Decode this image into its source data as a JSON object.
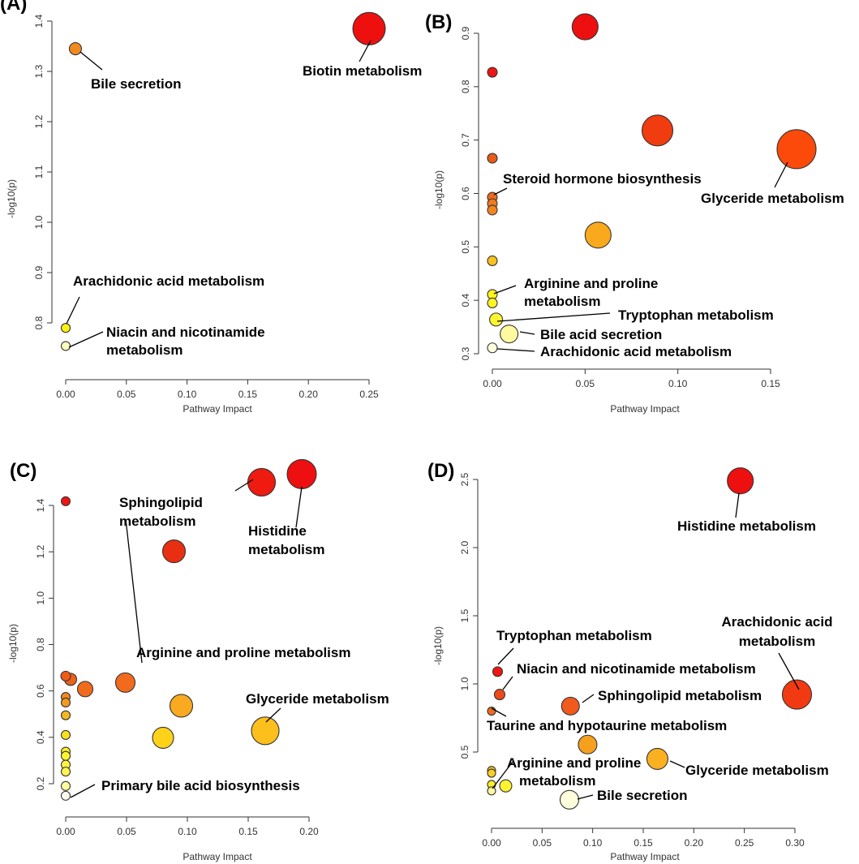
{
  "figure": {
    "description_labels": [
      "(A)",
      "(B)",
      "(C)",
      "(D)"
    ]
  },
  "chart_data": [
    {
      "panel": "(A)",
      "type": "scatter",
      "xlabel": "Pathway Impact",
      "ylabel": "-log10(p)",
      "xticks": [
        0.0,
        0.05,
        0.1,
        0.15,
        0.2,
        0.25
      ],
      "xtick_labels": [
        "0.00",
        "0.05",
        "0.10",
        "0.15",
        "0.20",
        "0.25"
      ],
      "yticks": [
        0.8,
        0.9,
        1.0,
        1.1,
        1.2,
        1.3,
        1.4
      ],
      "ytick_labels": [
        "0.8",
        "0.9",
        "1.0",
        "1.1",
        "1.2",
        "1.3",
        "1.4"
      ],
      "points": [
        {
          "x": 0.25,
          "y": 1.385,
          "r": 20,
          "color": "#ee0f0f"
        },
        {
          "x": 0.008,
          "y": 1.345,
          "r": 7.5,
          "color": "#f08a1e"
        },
        {
          "x": 0.0,
          "y": 0.79,
          "r": 5.5,
          "color": "#fff212"
        },
        {
          "x": 0.0,
          "y": 0.754,
          "r": 5.5,
          "color": "#ffffbf"
        }
      ],
      "annotations": [
        {
          "text": "Biotin metabolism",
          "x": 0.25,
          "y": 1.385
        },
        {
          "text": "Bile secretion",
          "x": 0.008,
          "y": 1.345
        },
        {
          "text": "Arachidonic acid metabolism",
          "x": 0.0,
          "y": 0.79
        },
        {
          "text": "Niacin and nicotinamide",
          "x": 0.0,
          "y": 0.754
        },
        {
          "text": "metabolism",
          "x": 0.0,
          "y": 0.754
        }
      ]
    },
    {
      "panel": "(B)",
      "type": "scatter",
      "xlabel": "Pathway Impact",
      "ylabel": "-log10(p)",
      "xticks": [
        0.0,
        0.05,
        0.1,
        0.15
      ],
      "xtick_labels": [
        "0.00",
        "0.05",
        "0.10",
        "0.15"
      ],
      "yticks": [
        0.3,
        0.4,
        0.5,
        0.6,
        0.7,
        0.8,
        0.9
      ],
      "ytick_labels": [
        "0.3",
        "0.4",
        "0.5",
        "0.6",
        "0.7",
        "0.8",
        "0.9"
      ],
      "points": [
        {
          "x": 0.05,
          "y": 0.912,
          "r": 16,
          "color": "#ee1010"
        },
        {
          "x": 0.0,
          "y": 0.827,
          "r": 6,
          "color": "#ee1515"
        },
        {
          "x": 0.089,
          "y": 0.718,
          "r": 19,
          "color": "#f13c10"
        },
        {
          "x": 0.164,
          "y": 0.683,
          "r": 24,
          "color": "#fc4a0a"
        },
        {
          "x": 0.0,
          "y": 0.666,
          "r": 6,
          "color": "#e85c18"
        },
        {
          "x": 0.0,
          "y": 0.593,
          "r": 6,
          "color": "#ee6a1a"
        },
        {
          "x": 0.0,
          "y": 0.581,
          "r": 6,
          "color": "#f07a1c"
        },
        {
          "x": 0.0,
          "y": 0.569,
          "r": 6,
          "color": "#f28520"
        },
        {
          "x": 0.057,
          "y": 0.522,
          "r": 16,
          "color": "#fba91c"
        },
        {
          "x": 0.0,
          "y": 0.474,
          "r": 6,
          "color": "#f8c020"
        },
        {
          "x": 0.0,
          "y": 0.411,
          "r": 6,
          "color": "#fff41a"
        },
        {
          "x": 0.0,
          "y": 0.395,
          "r": 6,
          "color": "#fff422"
        },
        {
          "x": 0.002,
          "y": 0.364,
          "r": 8,
          "color": "#fff530"
        },
        {
          "x": 0.009,
          "y": 0.337,
          "r": 11,
          "color": "#fffaa0"
        },
        {
          "x": 0.0,
          "y": 0.311,
          "r": 6,
          "color": "#ffffde"
        }
      ],
      "annotations": [
        {
          "text": "Steroid hormone biosynthesis"
        },
        {
          "text": "Glyceride metabolism"
        },
        {
          "text": "Arginine and proline"
        },
        {
          "text": "metabolism"
        },
        {
          "text": "Tryptophan metabolism"
        },
        {
          "text": "Bile acid secretion"
        },
        {
          "text": "Arachidonic acid metabolism"
        }
      ]
    },
    {
      "panel": "(C)",
      "type": "scatter",
      "xlabel": "Pathway Impact",
      "ylabel": "-log10(p)",
      "xticks": [
        0.0,
        0.05,
        0.1,
        0.15,
        0.2
      ],
      "xtick_labels": [
        "0.00",
        "0.05",
        "0.10",
        "0.15",
        "0.20"
      ],
      "yticks": [
        0.2,
        0.4,
        0.6,
        0.8,
        1.0,
        1.2,
        1.4
      ],
      "ytick_labels": [
        "0.2",
        "0.4",
        "0.6",
        "0.8",
        "1.0",
        "1.2",
        "1.4"
      ],
      "points": [
        {
          "x": 0.194,
          "y": 1.535,
          "r": 18,
          "color": "#ee1010"
        },
        {
          "x": 0.161,
          "y": 1.5,
          "r": 17,
          "color": "#ef1a10"
        },
        {
          "x": 0.0,
          "y": 1.418,
          "r": 5.5,
          "color": "#ee1515"
        },
        {
          "x": 0.089,
          "y": 1.202,
          "r": 14,
          "color": "#e82f12"
        },
        {
          "x": 0.0,
          "y": 0.664,
          "r": 6,
          "color": "#ee5a18"
        },
        {
          "x": 0.004,
          "y": 0.65,
          "r": 7.5,
          "color": "#ee6018"
        },
        {
          "x": 0.016,
          "y": 0.608,
          "r": 9.5,
          "color": "#f06c1c"
        },
        {
          "x": 0.049,
          "y": 0.636,
          "r": 12,
          "color": "#f26a1e"
        },
        {
          "x": 0.0,
          "y": 0.574,
          "r": 5.5,
          "color": "#f28a20"
        },
        {
          "x": 0.0,
          "y": 0.55,
          "r": 5.5,
          "color": "#f39a22"
        },
        {
          "x": 0.095,
          "y": 0.536,
          "r": 14,
          "color": "#faaa20"
        },
        {
          "x": 0.0,
          "y": 0.495,
          "r": 5.5,
          "color": "#f6b820"
        },
        {
          "x": 0.164,
          "y": 0.428,
          "r": 17,
          "color": "#fcbf1c"
        },
        {
          "x": 0.08,
          "y": 0.398,
          "r": 13,
          "color": "#ffd21a"
        },
        {
          "x": 0.0,
          "y": 0.41,
          "r": 5.5,
          "color": "#fbe020"
        },
        {
          "x": 0.0,
          "y": 0.338,
          "r": 5.5,
          "color": "#fff020"
        },
        {
          "x": 0.0,
          "y": 0.32,
          "r": 5.5,
          "color": "#fff530"
        },
        {
          "x": 0.0,
          "y": 0.282,
          "r": 5.5,
          "color": "#fff540"
        },
        {
          "x": 0.0,
          "y": 0.252,
          "r": 5.5,
          "color": "#fff550"
        },
        {
          "x": 0.0,
          "y": 0.19,
          "r": 5.5,
          "color": "#ffffa0"
        },
        {
          "x": 0.0,
          "y": 0.148,
          "r": 5.5,
          "color": "#ffffee"
        }
      ],
      "annotations": [
        {
          "text": "Sphingolipid"
        },
        {
          "text": "metabolism"
        },
        {
          "text": "Histidine"
        },
        {
          "text": "metabolism"
        },
        {
          "text": "Arginine and proline metabolism"
        },
        {
          "text": "Glyceride metabolism"
        },
        {
          "text": "Primary bile acid biosynthesis"
        }
      ]
    },
    {
      "panel": "(D)",
      "type": "scatter",
      "xlabel": "Pathway Impact",
      "ylabel": "-log10(p)",
      "xticks": [
        0.0,
        0.05,
        0.1,
        0.15,
        0.2,
        0.25,
        0.3
      ],
      "xtick_labels": [
        "0.00",
        "0.05",
        "0.10",
        "0.15",
        "0.20",
        "0.25",
        "0.30"
      ],
      "yticks": [
        0.5,
        1.0,
        1.5,
        2.0,
        2.5
      ],
      "ytick_labels": [
        "0.5",
        "1.0",
        "1.5",
        "2.0",
        "2.5"
      ],
      "points": [
        {
          "x": 0.246,
          "y": 2.49,
          "r": 16,
          "color": "#ee1010"
        },
        {
          "x": 0.006,
          "y": 1.09,
          "r": 6,
          "color": "#ee1515"
        },
        {
          "x": 0.008,
          "y": 0.922,
          "r": 6.5,
          "color": "#ee4a18"
        },
        {
          "x": 0.302,
          "y": 0.922,
          "r": 18,
          "color": "#f23a12"
        },
        {
          "x": 0.078,
          "y": 0.837,
          "r": 11,
          "color": "#f05a1c"
        },
        {
          "x": 0.0,
          "y": 0.8,
          "r": 5,
          "color": "#f06a1c"
        },
        {
          "x": 0.095,
          "y": 0.555,
          "r": 11.5,
          "color": "#f6a020"
        },
        {
          "x": 0.164,
          "y": 0.45,
          "r": 13,
          "color": "#fab020"
        },
        {
          "x": 0.0,
          "y": 0.365,
          "r": 5,
          "color": "#f8c820"
        },
        {
          "x": 0.0,
          "y": 0.345,
          "r": 5,
          "color": "#fad020"
        },
        {
          "x": 0.0,
          "y": 0.262,
          "r": 5,
          "color": "#fff020"
        },
        {
          "x": 0.014,
          "y": 0.252,
          "r": 7.5,
          "color": "#fff230"
        },
        {
          "x": 0.0,
          "y": 0.215,
          "r": 5,
          "color": "#fff8a0"
        },
        {
          "x": 0.077,
          "y": 0.15,
          "r": 11.5,
          "color": "#ffffde"
        }
      ],
      "annotations": [
        {
          "text": "Histidine metabolism"
        },
        {
          "text": "Arachidonic acid"
        },
        {
          "text": "metabolism"
        },
        {
          "text": "Tryptophan metabolism"
        },
        {
          "text": "Niacin and nicotinamide metabolism"
        },
        {
          "text": "Sphingolipid metabolism"
        },
        {
          "text": "Taurine and hypotaurine metabolism"
        },
        {
          "text": "Glyceride metabolism"
        },
        {
          "text": "Arginine and proline"
        },
        {
          "text": "metabolism"
        },
        {
          "text": "Bile secretion"
        }
      ]
    }
  ]
}
